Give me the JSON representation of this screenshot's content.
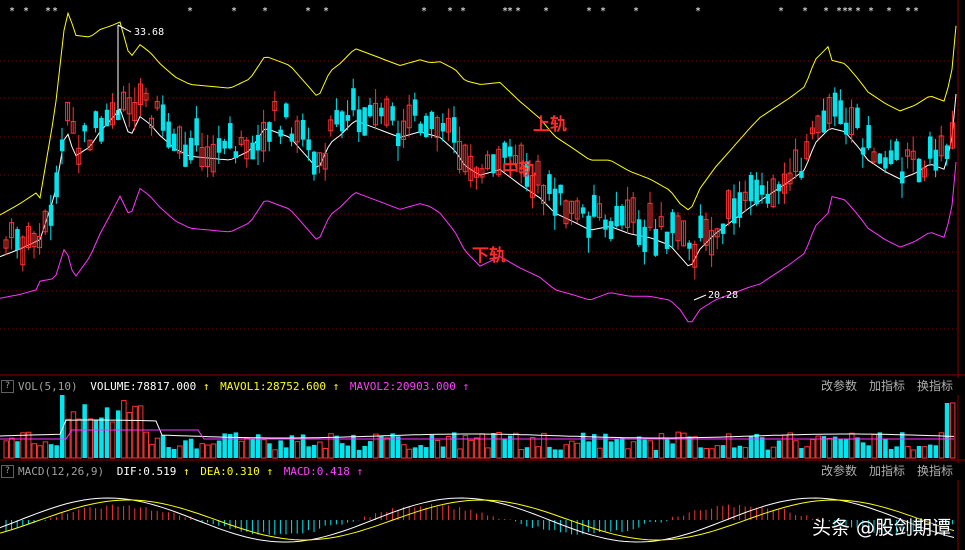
{
  "chart_data": {
    "type": "candlestick",
    "price_labels": {
      "high": "33.68",
      "low": "20.28"
    },
    "band_labels": {
      "upper": "上轨",
      "middle": "中轨",
      "lower": "下轨"
    },
    "price_range": [
      17.5,
      36.0
    ]
  },
  "vol_panel": {
    "help": "?",
    "name": "VOL(5,10)",
    "volume": "VOLUME:78817.000",
    "ma1": "MAVOL1:28752.600",
    "ma2": "MAVOL2:20903.000",
    "arrow": "↑"
  },
  "macd_panel": {
    "help": "?",
    "name": "MACD(12,26,9)",
    "dif": "DIF:0.519",
    "dea": "DEA:0.310",
    "macd": "MACD:0.418",
    "arrow": "↑"
  },
  "buttons": {
    "params": "改参数",
    "add": "加指标",
    "swap": "换指标"
  },
  "watermark": "头条 @股剑期谭",
  "colors": {
    "up": "#ff3333",
    "down": "#00e5ee",
    "upper_band": "#ffff00",
    "mid_band": "#ffffff",
    "lower_band": "#ff33ff",
    "grid": "#7a0000"
  }
}
